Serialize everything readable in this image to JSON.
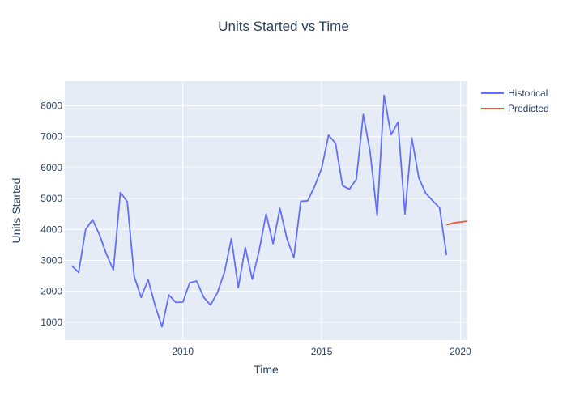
{
  "chart_data": {
    "type": "line",
    "title": "Units Started vs Time",
    "xlabel": "Time",
    "ylabel": "Units Started",
    "xlim": [
      2005.75,
      2020.25
    ],
    "ylim": [
      420,
      8800
    ],
    "x_ticks": [
      2010,
      2015,
      2020
    ],
    "x_tick_labels": [
      "2010",
      "2015",
      "2020"
    ],
    "y_ticks": [
      1000,
      2000,
      3000,
      4000,
      5000,
      6000,
      7000,
      8000
    ],
    "y_tick_labels": [
      "1000",
      "2000",
      "3000",
      "4000",
      "5000",
      "6000",
      "7000",
      "8000"
    ],
    "grid": true,
    "legend_position": "top-right",
    "colors": {
      "plot_bg": "#e5ecf6",
      "grid": "#ffffff",
      "text": "#2a3f5f",
      "historical": "#636efa",
      "predicted": "#ef553b"
    },
    "series": [
      {
        "name": "Historical",
        "x": [
          2006.0,
          2006.25,
          2006.5,
          2006.75,
          2007.0,
          2007.25,
          2007.5,
          2007.75,
          2008.0,
          2008.25,
          2008.5,
          2008.75,
          2009.0,
          2009.25,
          2009.5,
          2009.75,
          2010.0,
          2010.25,
          2010.5,
          2010.75,
          2011.0,
          2011.25,
          2011.5,
          2011.75,
          2012.0,
          2012.25,
          2012.5,
          2012.75,
          2013.0,
          2013.25,
          2013.5,
          2013.75,
          2014.0,
          2014.25,
          2014.5,
          2014.75,
          2015.0,
          2015.25,
          2015.5,
          2015.75,
          2016.0,
          2016.25,
          2016.5,
          2016.75,
          2017.0,
          2017.25,
          2017.5,
          2017.75,
          2018.0,
          2018.25,
          2018.5,
          2018.75,
          2019.0,
          2019.25,
          2019.5
        ],
        "y": [
          2830,
          2610,
          4000,
          4320,
          3830,
          3200,
          2690,
          5200,
          4900,
          2480,
          1800,
          2380,
          1550,
          850,
          1880,
          1640,
          1650,
          2280,
          2330,
          1810,
          1560,
          1960,
          2620,
          3700,
          2120,
          3420,
          2390,
          3310,
          4500,
          3540,
          4680,
          3700,
          3090,
          4910,
          4930,
          5400,
          5980,
          7050,
          6790,
          5420,
          5300,
          5620,
          7720,
          6500,
          4450,
          8340,
          7060,
          7470,
          4500,
          6960,
          5670,
          5170,
          4930,
          4700,
          3170
        ]
      },
      {
        "name": "Predicted",
        "x": [
          2019.5,
          2019.75,
          2020.0,
          2020.25
        ],
        "y": [
          4150,
          4210,
          4240,
          4270
        ]
      }
    ]
  }
}
